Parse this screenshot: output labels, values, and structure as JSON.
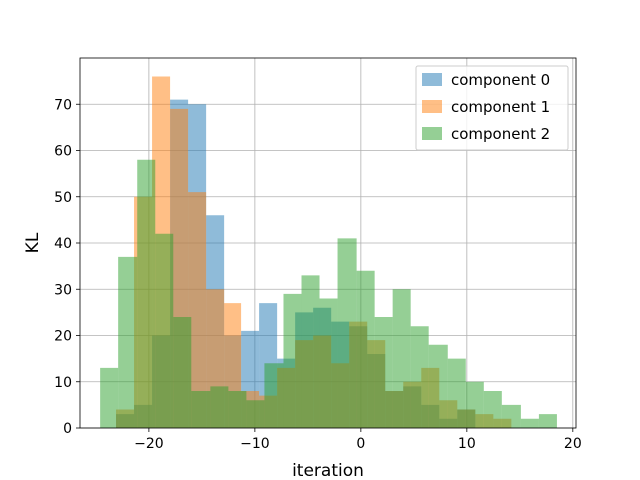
{
  "chart_data": {
    "type": "histogram",
    "xlabel": "iteration",
    "ylabel": "KL",
    "xlim": [
      -26.5,
      20.3
    ],
    "ylim": [
      0,
      80
    ],
    "x_ticks": [
      -20,
      -10,
      0,
      10,
      20
    ],
    "x_tick_labels": [
      "−20",
      "−10",
      "0",
      "10",
      "20"
    ],
    "y_ticks": [
      0,
      10,
      20,
      30,
      40,
      50,
      60,
      70
    ],
    "y_tick_labels": [
      "0",
      "10",
      "20",
      "30",
      "40",
      "50",
      "60",
      "70"
    ],
    "grid": true,
    "legend_position": "top-right",
    "bar_alpha": 0.5,
    "series": [
      {
        "name": "component 0",
        "color": "#1f77b4",
        "bins": [
          [
            -23.1,
            -21.4,
            3
          ],
          [
            -21.4,
            -19.7,
            5
          ],
          [
            -19.7,
            -18.0,
            20
          ],
          [
            -18.0,
            -16.3,
            71
          ],
          [
            -16.3,
            -14.6,
            70
          ],
          [
            -14.6,
            -12.9,
            46
          ],
          [
            -12.9,
            -11.3,
            20
          ],
          [
            -11.3,
            -9.6,
            21
          ],
          [
            -9.6,
            -7.9,
            27
          ],
          [
            -7.9,
            -6.2,
            15
          ],
          [
            -6.2,
            -4.5,
            25
          ],
          [
            -4.5,
            -2.8,
            26
          ],
          [
            -2.8,
            -1.1,
            23
          ],
          [
            -1.1,
            0.6,
            22
          ],
          [
            0.6,
            2.3,
            16
          ],
          [
            2.3,
            4.0,
            8
          ],
          [
            4.0,
            5.7,
            9
          ],
          [
            5.7,
            7.4,
            5
          ],
          [
            7.4,
            9.1,
            2
          ],
          [
            9.1,
            10.8,
            4
          ]
        ]
      },
      {
        "name": "component 1",
        "color": "#ff7f0e",
        "bins": [
          [
            -23.1,
            -21.4,
            4
          ],
          [
            -21.4,
            -19.7,
            50
          ],
          [
            -19.7,
            -18.0,
            76
          ],
          [
            -18.0,
            -16.3,
            69
          ],
          [
            -16.3,
            -14.6,
            51
          ],
          [
            -14.6,
            -12.9,
            30
          ],
          [
            -12.9,
            -11.3,
            27
          ],
          [
            -11.3,
            -9.6,
            8
          ],
          [
            -9.6,
            -7.9,
            7
          ],
          [
            -7.9,
            -6.2,
            13
          ],
          [
            -6.2,
            -4.5,
            19
          ],
          [
            -4.5,
            -2.8,
            20
          ],
          [
            -2.8,
            -1.1,
            14
          ],
          [
            -1.1,
            0.6,
            23
          ],
          [
            0.6,
            2.3,
            19
          ],
          [
            2.3,
            4.0,
            8
          ],
          [
            4.0,
            5.7,
            10
          ],
          [
            5.7,
            7.4,
            13
          ],
          [
            7.4,
            9.1,
            6
          ],
          [
            9.1,
            10.8,
            4
          ],
          [
            10.8,
            12.5,
            3
          ],
          [
            12.5,
            14.2,
            2
          ]
        ]
      },
      {
        "name": "component 2",
        "color": "#2ca02c",
        "bins": [
          [
            -24.6,
            -22.9,
            13
          ],
          [
            -22.9,
            -21.1,
            37
          ],
          [
            -21.1,
            -19.4,
            58
          ],
          [
            -19.4,
            -17.7,
            42
          ],
          [
            -17.7,
            -16.0,
            24
          ],
          [
            -16.0,
            -14.2,
            8
          ],
          [
            -14.2,
            -12.5,
            9
          ],
          [
            -12.5,
            -10.8,
            8
          ],
          [
            -10.8,
            -9.1,
            6
          ],
          [
            -9.1,
            -7.3,
            14
          ],
          [
            -7.3,
            -5.6,
            29
          ],
          [
            -5.6,
            -3.9,
            33
          ],
          [
            -3.9,
            -2.2,
            28
          ],
          [
            -2.2,
            -0.4,
            41
          ],
          [
            -0.4,
            1.3,
            34
          ],
          [
            1.3,
            3.0,
            24
          ],
          [
            3.0,
            4.7,
            30
          ],
          [
            4.7,
            6.4,
            22
          ],
          [
            6.4,
            8.2,
            18
          ],
          [
            8.2,
            9.9,
            15
          ],
          [
            9.9,
            11.6,
            10
          ],
          [
            11.6,
            13.3,
            8
          ],
          [
            13.3,
            15.1,
            5
          ],
          [
            15.1,
            16.8,
            2
          ],
          [
            16.8,
            18.5,
            3
          ]
        ]
      }
    ]
  }
}
